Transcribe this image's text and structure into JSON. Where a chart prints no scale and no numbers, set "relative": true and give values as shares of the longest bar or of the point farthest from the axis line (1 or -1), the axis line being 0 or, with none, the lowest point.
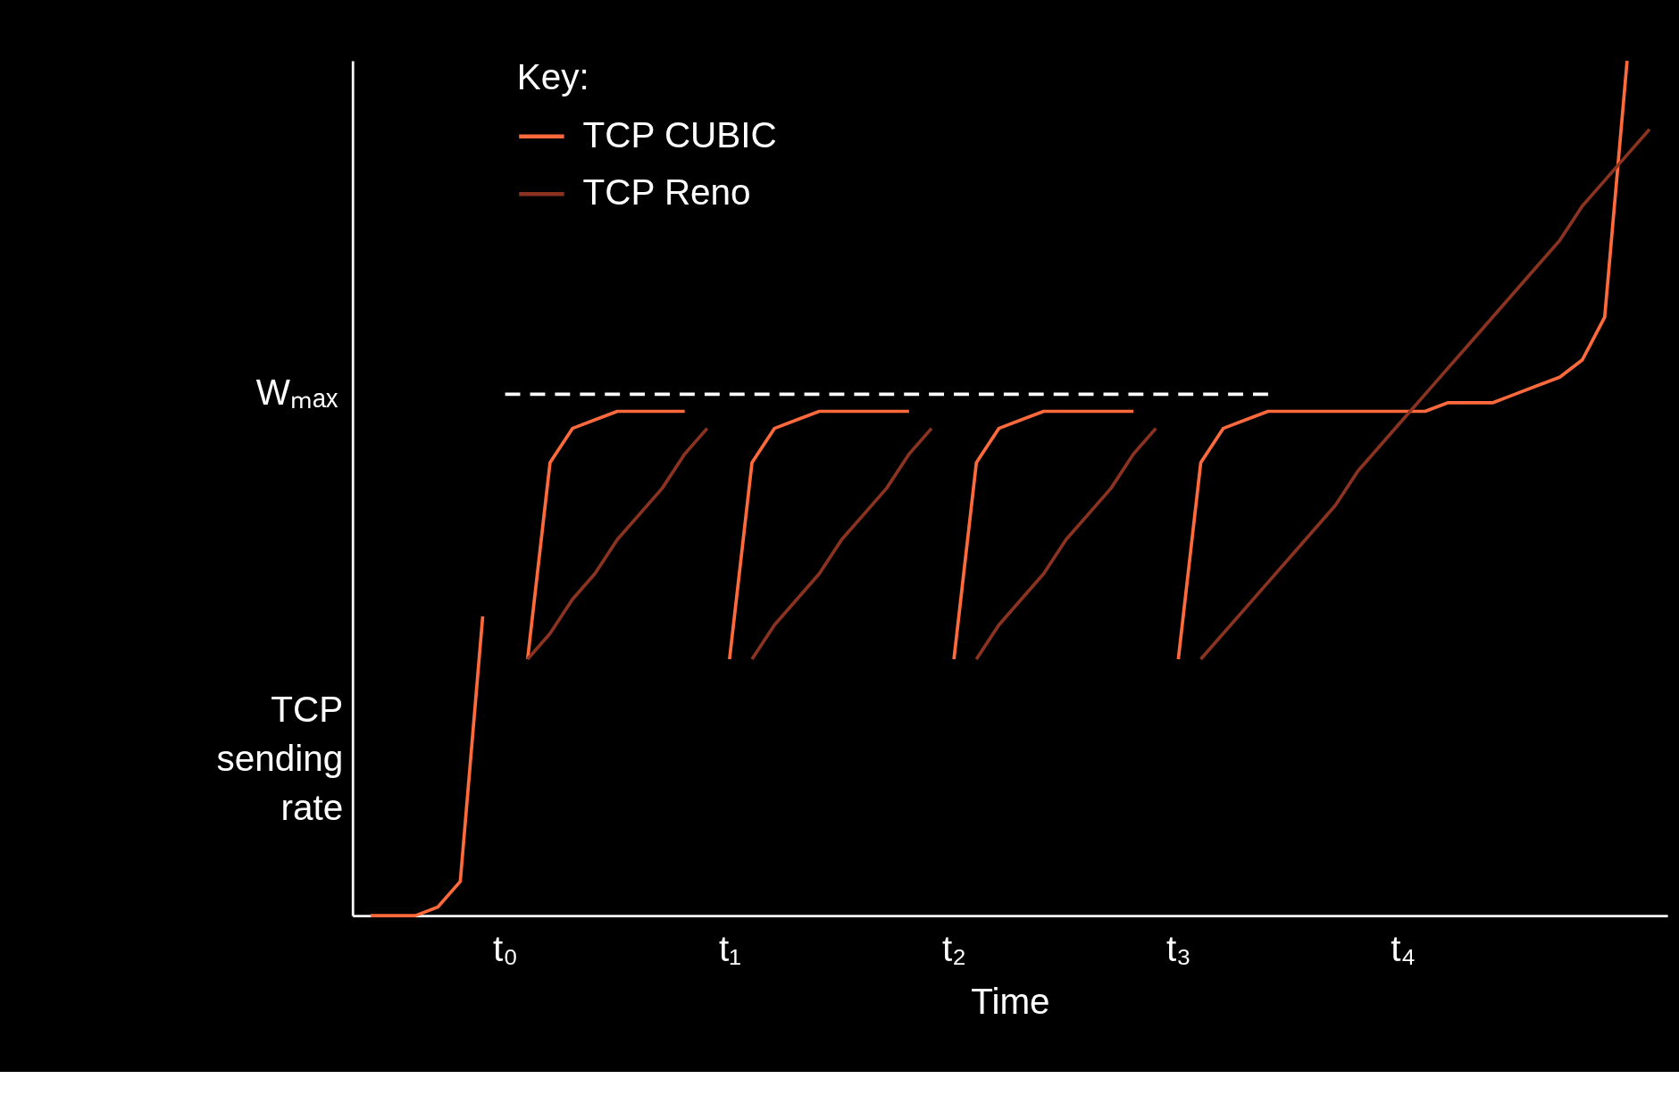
{
  "chart_data": {
    "type": "line",
    "relative": true,
    "xlabel": "Time",
    "ylabel": "TCP sending rate",
    "legend_title": "Key:",
    "legend": "top left",
    "categories": [
      null,
      null,
      null,
      null,
      null,
      null,
      "t₀",
      null,
      null,
      null,
      null,
      null,
      null,
      null,
      null,
      null,
      "t₁",
      null,
      null,
      null,
      null,
      null,
      null,
      null,
      null,
      null,
      "t₂",
      null,
      null,
      null,
      null,
      null,
      null,
      null,
      null,
      null,
      "t₃",
      null,
      null,
      null,
      null,
      null,
      null,
      null,
      null,
      null,
      "t₄",
      null,
      null,
      null,
      null,
      null,
      null,
      null,
      null,
      null,
      null,
      null
    ],
    "annotations": [
      "Wₘₐₓ"
    ],
    "series": [
      {
        "type": "line",
        "color": "#ffffff",
        "line_style": "dashed",
        "values": [
          null,
          null,
          null,
          null,
          null,
          null,
          0.61,
          0.61,
          0.61,
          0.61,
          0.61,
          0.61,
          0.61,
          0.61,
          0.61,
          0.61,
          0.61,
          0.61,
          0.61,
          0.61,
          0.61,
          0.61,
          0.61,
          0.61,
          0.61,
          0.61,
          0.61,
          0.61,
          0.61,
          0.61,
          0.61,
          0.61,
          0.61,
          0.61,
          0.61,
          0.61,
          0.61,
          0.61,
          0.61,
          0.61,
          0.61,
          null,
          null,
          null,
          null,
          null,
          null,
          null,
          null,
          null,
          null,
          null,
          null,
          null,
          null,
          null,
          null,
          null
        ]
      },
      {
        "name": "TCP CUBIC",
        "color": "#ff6a3d",
        "values": [
          0.0,
          0.0,
          0.0,
          0.01,
          0.04,
          0.35,
          null,
          0.3,
          0.53,
          0.57,
          0.58,
          0.59,
          0.59,
          0.59,
          0.59,
          null,
          0.3,
          0.53,
          0.57,
          0.58,
          0.59,
          0.59,
          0.59,
          0.59,
          0.59,
          null,
          0.3,
          0.53,
          0.57,
          0.58,
          0.59,
          0.59,
          0.59,
          0.59,
          0.59,
          null,
          0.3,
          0.53,
          0.57,
          0.58,
          0.59,
          0.59,
          0.59,
          0.59,
          0.59,
          0.59,
          0.59,
          0.59,
          0.6,
          0.6,
          0.6,
          0.61,
          0.62,
          0.63,
          0.65,
          0.7,
          1.0,
          null
        ]
      },
      {
        "name": "TCP Reno",
        "color": "#8b3320",
        "values": [
          null,
          null,
          null,
          null,
          null,
          null,
          null,
          0.3,
          0.33,
          0.37,
          0.4,
          0.44,
          0.47,
          0.5,
          0.54,
          0.57,
          null,
          0.3,
          0.34,
          0.37,
          0.4,
          0.44,
          0.47,
          0.5,
          0.54,
          0.57,
          null,
          0.3,
          0.34,
          0.37,
          0.4,
          0.44,
          0.47,
          0.5,
          0.54,
          0.57,
          null,
          0.3,
          0.33,
          0.36,
          0.39,
          0.42,
          0.45,
          0.48,
          0.52,
          0.55,
          0.58,
          0.61,
          0.64,
          0.67,
          0.7,
          0.73,
          0.76,
          0.79,
          0.83,
          0.86,
          0.89,
          0.92
        ]
      }
    ]
  }
}
